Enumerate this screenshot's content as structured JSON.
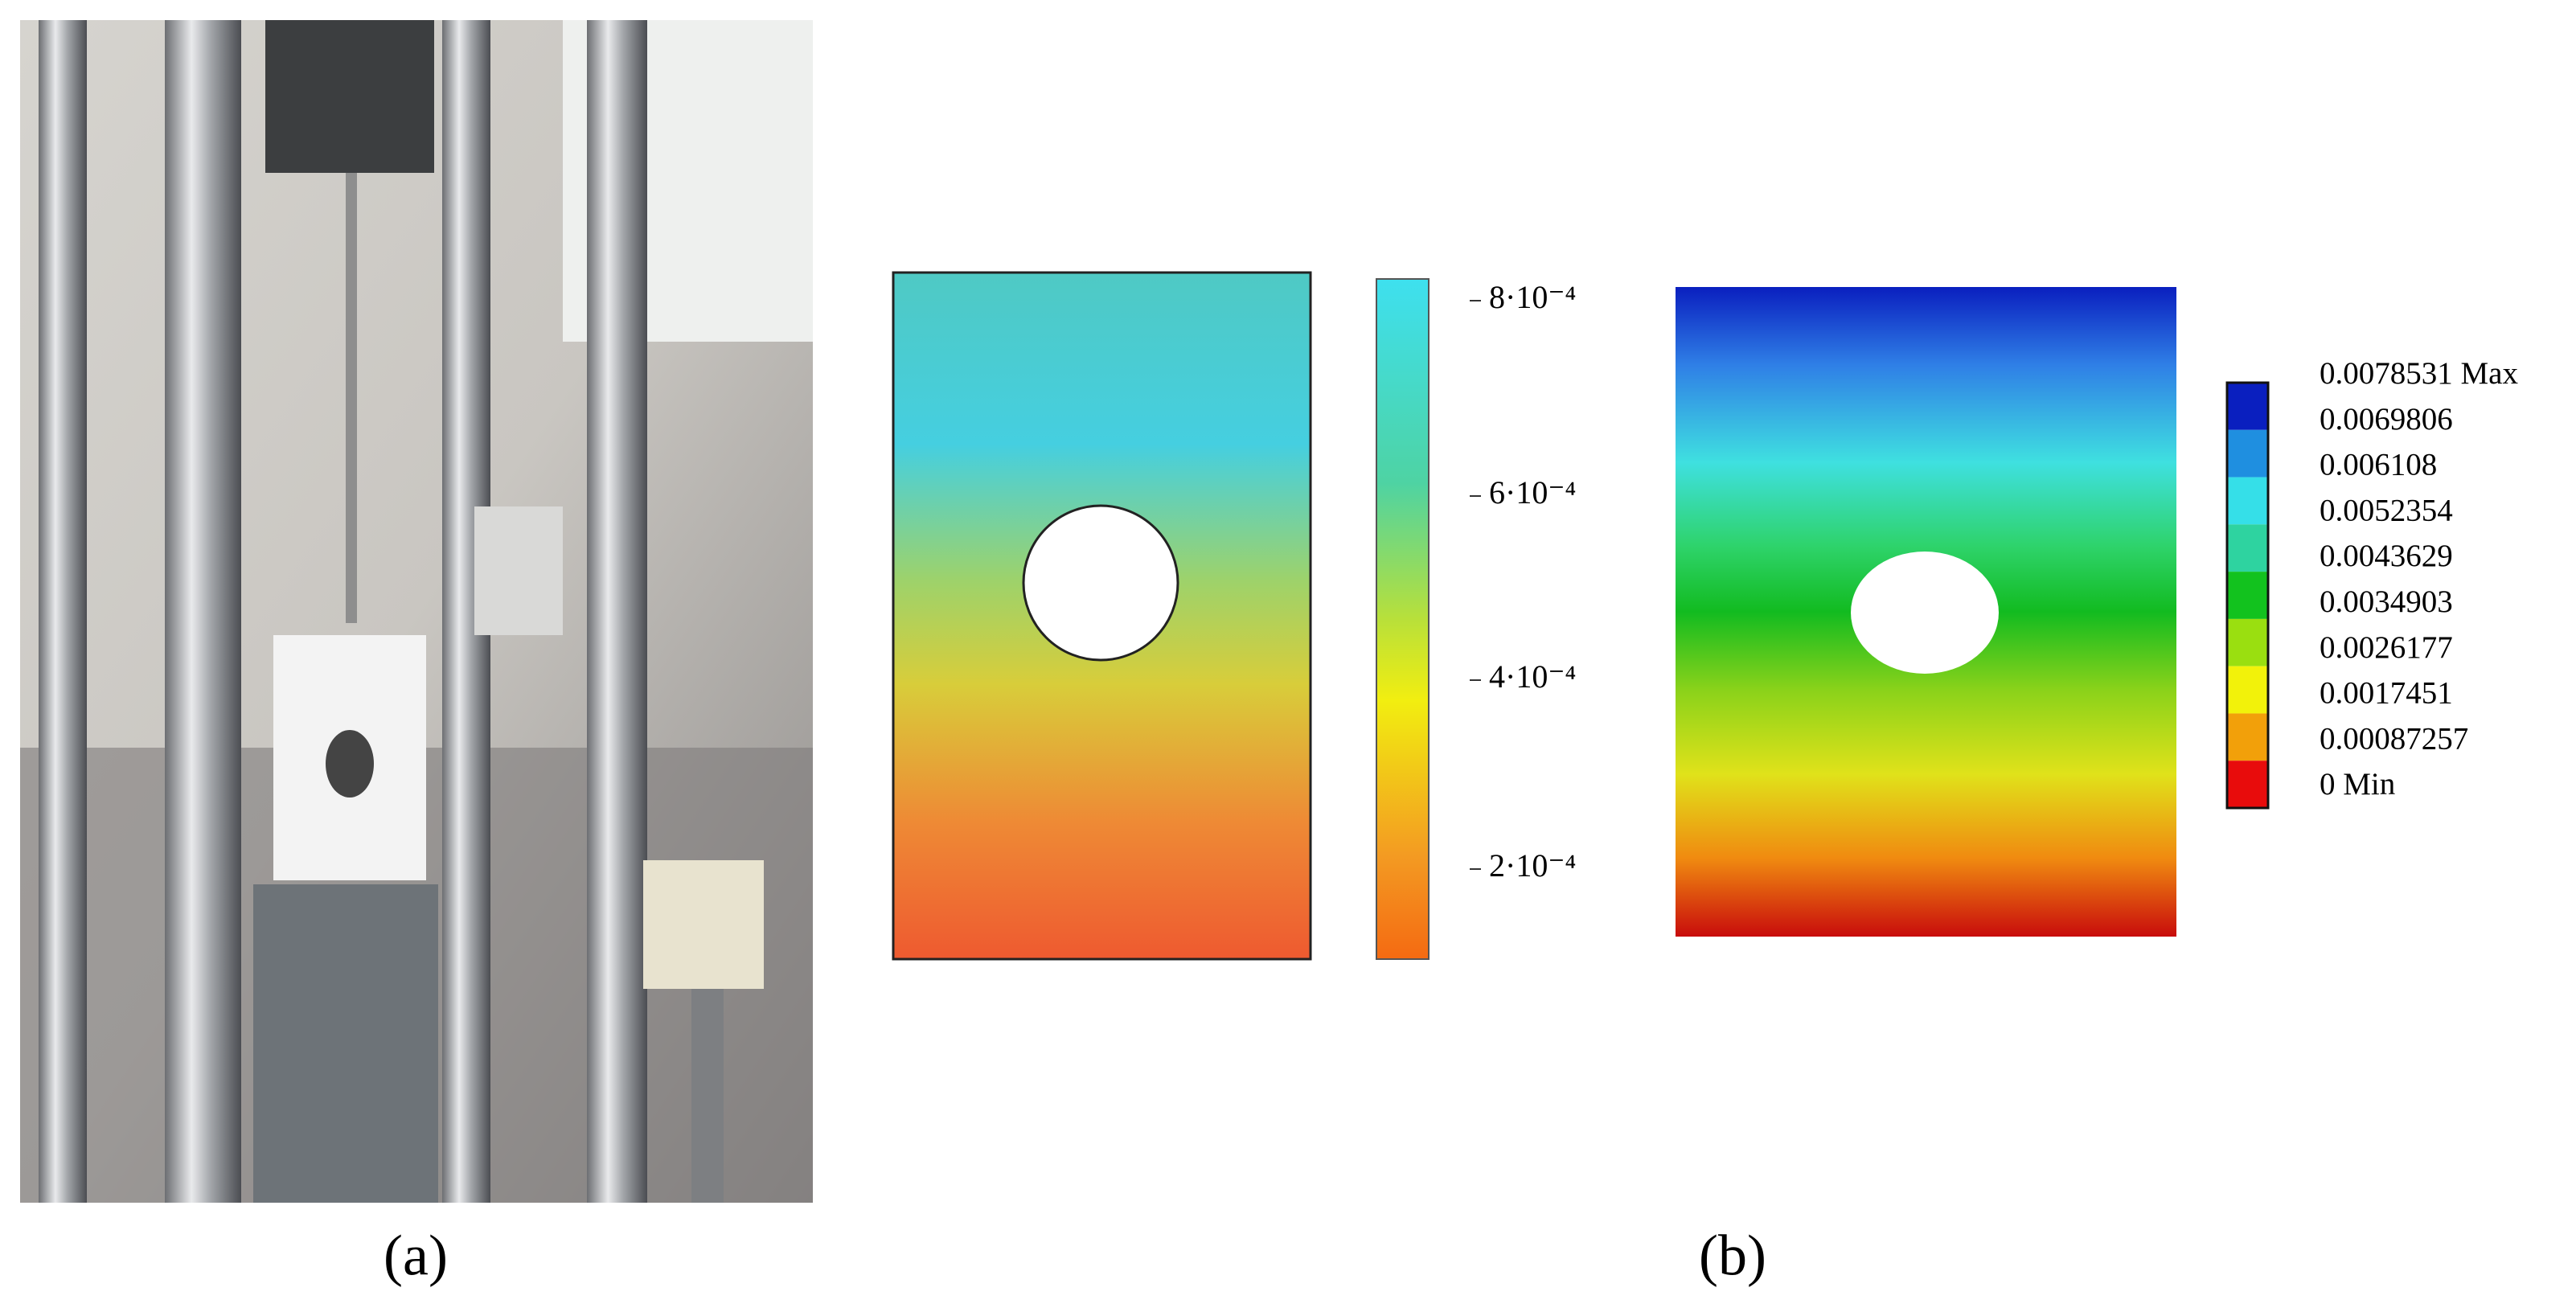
{
  "panels": [
    {
      "label": "(a)"
    },
    {
      "label": "(b)",
      "dic_colorbar": {
        "ticks": [
          "8·10⁻⁴",
          "6·10⁻⁴",
          "4·10⁻⁴",
          "2·10⁻⁴"
        ]
      },
      "fem_legend": {
        "labels": [
          "0.0078531 Max",
          "0.0069806",
          "0.006108",
          "0.0052354",
          "0.0043629",
          "0.0034903",
          "0.0026177",
          "0.0017451",
          "0.00087257",
          "0 Min"
        ]
      }
    }
  ]
}
